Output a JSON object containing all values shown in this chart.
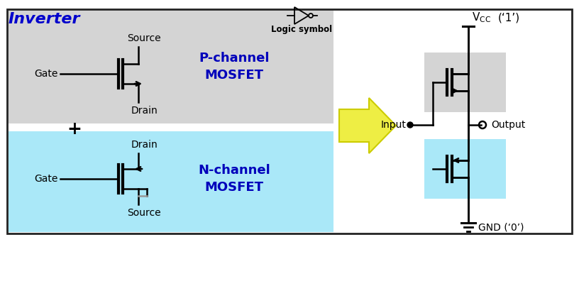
{
  "title": "Inverter",
  "title_color": "#0000cc",
  "logic_symbol_label": "Logic symbol",
  "bg_color": "#ffffff",
  "main_box_color": "#222222",
  "p_channel_bg": "#d4d4d4",
  "n_channel_bg": "#aae8f8",
  "p_label": "P-channel\nMOSFET",
  "n_label": "N-channel\nMOSFET",
  "label_color": "#0000bb",
  "black": "#000000",
  "gray": "#999999",
  "gnd_label": "GND (‘0’)",
  "input_label": "Input",
  "output_label": "Output",
  "arrow_fill": "#eeee44",
  "arrow_edge": "#cccc00"
}
